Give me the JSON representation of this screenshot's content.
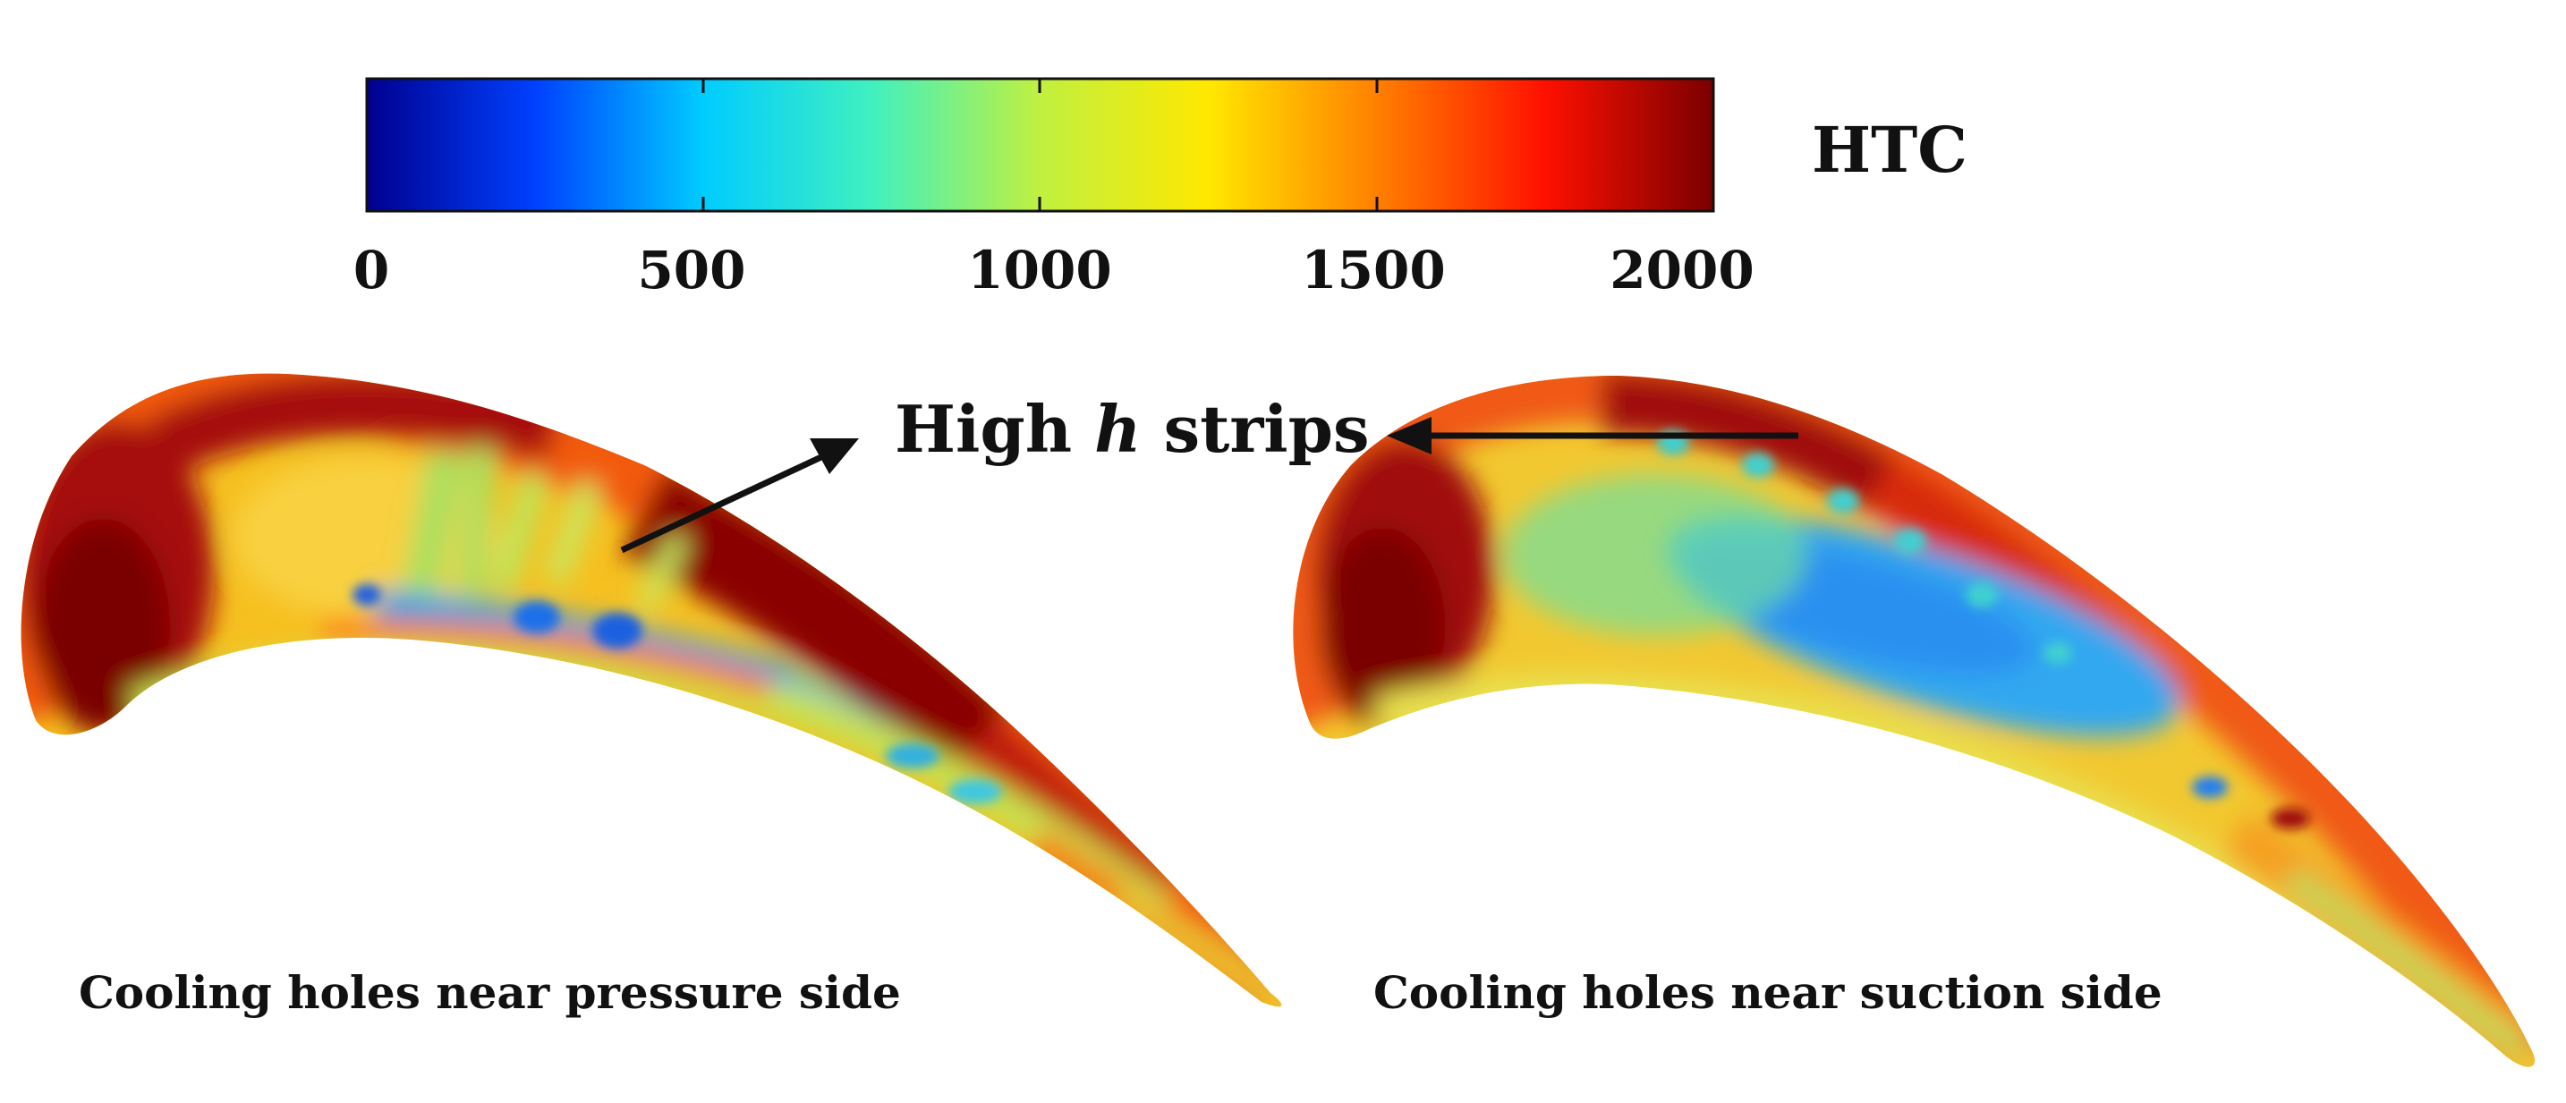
{
  "colorbar": {
    "label": "HTC",
    "ticks": [
      "0",
      "500",
      "1000",
      "1500",
      "2000"
    ],
    "stops": [
      "#00008f",
      "#0040ff",
      "#00ccff",
      "#40f0c0",
      "#c0f040",
      "#ffe800",
      "#ff8000",
      "#ff1000",
      "#7a0000"
    ]
  },
  "annotation": {
    "prefix": "High ",
    "italic": "h",
    "suffix": " strips",
    "color": "#e8141b"
  },
  "captions": {
    "left": "Cooling holes near pressure side",
    "right": "Cooling holes near suction side"
  }
}
